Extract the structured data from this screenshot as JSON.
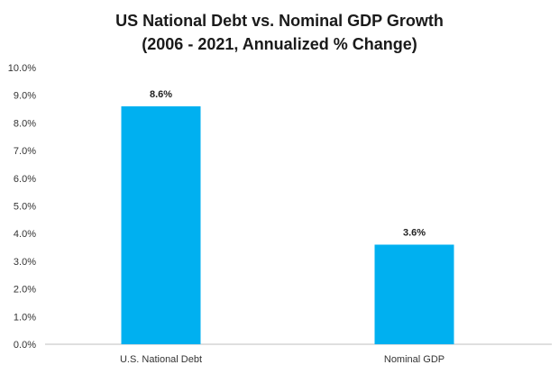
{
  "chart_data": {
    "type": "bar",
    "title": "US National Debt vs. Nominal GDP Growth",
    "subtitle": "(2006 - 2021, Annualized % Change)",
    "categories": [
      "U.S. National Debt",
      "Nominal GDP"
    ],
    "values": [
      8.6,
      3.6
    ],
    "data_labels": [
      "8.6%",
      "3.6%"
    ],
    "ylim": [
      0,
      10
    ],
    "yticks": [
      0,
      1,
      2,
      3,
      4,
      5,
      6,
      7,
      8,
      9,
      10
    ],
    "ytick_labels": [
      "0.0%",
      "1.0%",
      "2.0%",
      "3.0%",
      "4.0%",
      "5.0%",
      "6.0%",
      "7.0%",
      "8.0%",
      "9.0%",
      "10.0%"
    ],
    "grid": false,
    "legend": "none",
    "bar_color": "#00B0F0",
    "axis_color": "#bfbfbf"
  }
}
